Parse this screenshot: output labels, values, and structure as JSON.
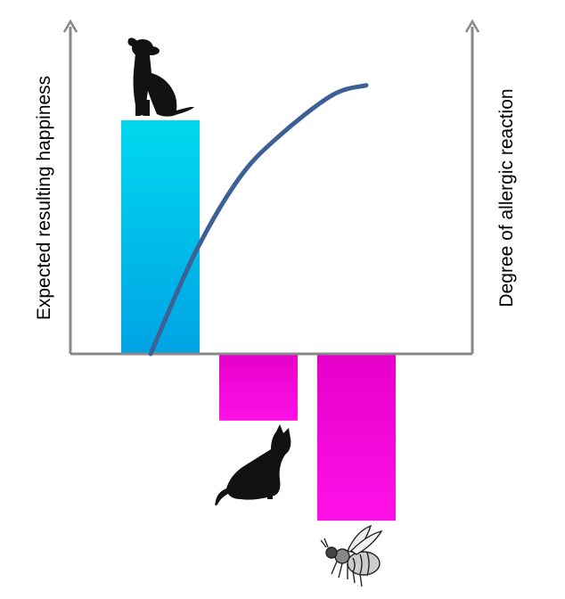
{
  "chart_data": {
    "type": "bar",
    "title": "",
    "ylabel": "Expected resulting happiness",
    "y2label": "Degree of allergic reaction",
    "ylim": [
      -10,
      17.5
    ],
    "grid": false,
    "legend": "none",
    "categories": [
      "dog",
      "cat",
      "bee"
    ],
    "values": [
      14,
      -4,
      -10
    ],
    "bar_icons": [
      "dog-icon",
      "cat-icon",
      "bee-icon"
    ],
    "colors": {
      "positive_top": "#00d8ee",
      "positive_bottom": "#00a3e4",
      "negative_top": "#e600c8",
      "negative_bottom": "#ff10e8",
      "curve": "#3d6196",
      "axis": "#888888"
    },
    "curve": {
      "name": "",
      "points": [
        [
          0.9,
          0
        ],
        [
          1.35,
          6
        ],
        [
          1.8,
          10.5
        ],
        [
          2.2,
          13
        ],
        [
          2.75,
          15.5
        ],
        [
          3.1,
          16.1
        ]
      ]
    }
  }
}
